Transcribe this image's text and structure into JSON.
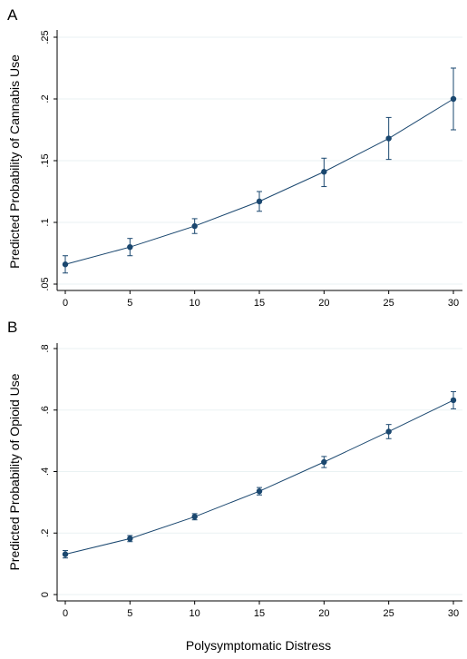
{
  "figure": {
    "shared_xlabel": "Polysymptomatic Distress"
  },
  "colors": {
    "series": "#1a476f",
    "grid": "#eaf2f3",
    "axis": "#000000"
  },
  "chart_data": [
    {
      "type": "line",
      "panel_label": "A",
      "title": "",
      "xlabel": "Polysymptomatic Distress",
      "ylabel": "Predicted Probability of Cannabis Use",
      "x": [
        0,
        5,
        10,
        15,
        20,
        25,
        30
      ],
      "xticks": [
        "0",
        "5",
        "10",
        "15",
        "20",
        "25",
        "30"
      ],
      "yticks": [
        ".05",
        ".1",
        ".15",
        ".2",
        ".25"
      ],
      "ytick_values": [
        0.05,
        0.1,
        0.15,
        0.2,
        0.25
      ],
      "ylim": [
        0.05,
        0.25
      ],
      "xlim": [
        0,
        30
      ],
      "grid": true,
      "series": [
        {
          "values": [
            0.066,
            0.08,
            0.097,
            0.117,
            0.141,
            0.168,
            0.2
          ],
          "ci_low": [
            0.059,
            0.073,
            0.091,
            0.109,
            0.129,
            0.151,
            0.175
          ],
          "ci_high": [
            0.073,
            0.087,
            0.103,
            0.125,
            0.152,
            0.185,
            0.225
          ]
        }
      ]
    },
    {
      "type": "line",
      "panel_label": "B",
      "title": "",
      "xlabel": "Polysymptomatic Distress",
      "ylabel": "Predicted Probability of Opioid Use",
      "x": [
        0,
        5,
        10,
        15,
        20,
        25,
        30
      ],
      "xticks": [
        "0",
        "5",
        "10",
        "15",
        "20",
        "25",
        "30"
      ],
      "yticks": [
        "0",
        ".2",
        ".4",
        ".6",
        ".8"
      ],
      "ytick_values": [
        0,
        0.2,
        0.4,
        0.6,
        0.8
      ],
      "ylim": [
        0,
        0.8
      ],
      "xlim": [
        0,
        30
      ],
      "grid": true,
      "series": [
        {
          "values": [
            0.131,
            0.182,
            0.253,
            0.336,
            0.431,
            0.53,
            0.632
          ],
          "ci_low": [
            0.119,
            0.172,
            0.243,
            0.324,
            0.413,
            0.507,
            0.604
          ],
          "ci_high": [
            0.143,
            0.192,
            0.263,
            0.348,
            0.449,
            0.553,
            0.66
          ]
        }
      ]
    }
  ]
}
